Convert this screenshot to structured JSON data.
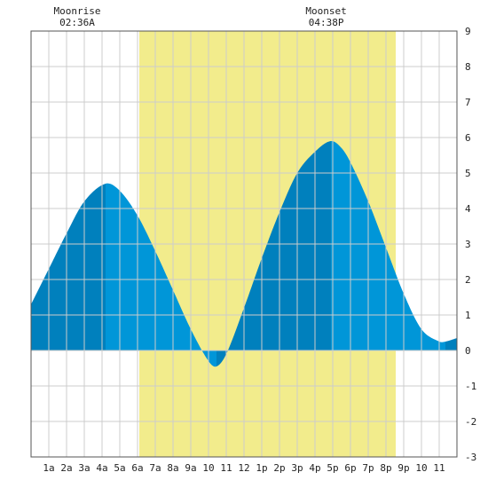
{
  "chart_data": {
    "type": "area",
    "x_tick_labels": [
      "1a",
      "2a",
      "3a",
      "4a",
      "5a",
      "6a",
      "7a",
      "8a",
      "9a",
      "10",
      "11",
      "12",
      "1p",
      "2p",
      "3p",
      "4p",
      "5p",
      "6p",
      "7p",
      "8p",
      "9p",
      "10",
      "11"
    ],
    "y_ticks": [
      "9",
      "8",
      "7",
      "6",
      "5",
      "4",
      "3",
      "2",
      "1",
      "0",
      "-1",
      "-2",
      "-3"
    ],
    "xlim": [
      0,
      24
    ],
    "ylim": [
      -3,
      9
    ],
    "grid": true,
    "daylight": {
      "start_hour": 6.1,
      "end_hour": 20.55
    },
    "moon_events": [
      {
        "label": "Moonrise",
        "time": "02:36A",
        "hour": 2.6
      },
      {
        "label": "Moonset",
        "time": "04:38P",
        "hour": 16.63
      }
    ],
    "tide_extremes": [
      {
        "hour": 4.2,
        "height": 4.7,
        "kind": "high"
      },
      {
        "hour": 10.45,
        "height": -0.45,
        "kind": "low"
      },
      {
        "hour": 16.9,
        "height": 5.9,
        "kind": "high"
      },
      {
        "hour": 23.35,
        "height": 0.25,
        "kind": "low"
      }
    ],
    "series": [
      {
        "x": [
          0,
          1,
          2,
          3,
          4.2,
          5,
          6,
          7,
          8,
          9,
          10,
          10.45,
          11,
          12,
          13,
          14,
          15,
          16,
          16.9,
          17.5,
          18,
          19,
          20,
          21,
          22,
          23,
          23.35,
          24
        ],
        "values": [
          1.3,
          2.3,
          3.3,
          4.2,
          4.7,
          4.5,
          3.8,
          2.8,
          1.7,
          0.6,
          -0.3,
          -0.45,
          -0.1,
          1.2,
          2.6,
          3.9,
          5.0,
          5.6,
          5.9,
          5.7,
          5.3,
          4.2,
          2.9,
          1.6,
          0.6,
          0.25,
          0.25,
          0.35
        ]
      }
    ],
    "colors": {
      "daylight": "#f2ec8c",
      "tide_light": "#0096d8",
      "tide_dark": "#0080bd",
      "grid": "#cccccc",
      "frame": "#555555"
    }
  }
}
